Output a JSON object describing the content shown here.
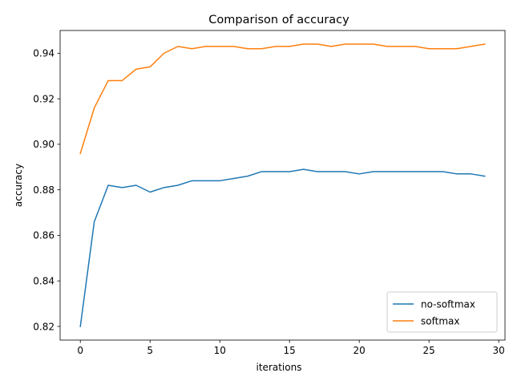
{
  "chart_data": {
    "type": "line",
    "title": "Comparison of accuracy",
    "xlabel": "iterations",
    "ylabel": "accuracy",
    "xlim": [
      -1.45,
      30.45
    ],
    "ylim": [
      0.814,
      0.95
    ],
    "xticks": [
      0,
      5,
      10,
      15,
      20,
      25,
      30
    ],
    "yticks": [
      0.82,
      0.84,
      0.86,
      0.88,
      0.9,
      0.92,
      0.94
    ],
    "grid": false,
    "legend_position": "lower-right",
    "x": [
      0,
      1,
      2,
      3,
      4,
      5,
      6,
      7,
      8,
      9,
      10,
      11,
      12,
      13,
      14,
      15,
      16,
      17,
      18,
      19,
      20,
      21,
      22,
      23,
      24,
      25,
      26,
      27,
      28,
      29
    ],
    "series": [
      {
        "name": "no-softmax",
        "color": "#1f77b4",
        "values": [
          0.82,
          0.866,
          0.882,
          0.881,
          0.882,
          0.879,
          0.881,
          0.882,
          0.884,
          0.884,
          0.884,
          0.885,
          0.886,
          0.888,
          0.888,
          0.888,
          0.889,
          0.888,
          0.888,
          0.888,
          0.887,
          0.888,
          0.888,
          0.888,
          0.888,
          0.888,
          0.888,
          0.887,
          0.887,
          0.886
        ]
      },
      {
        "name": "softmax",
        "color": "#ff7f0e",
        "values": [
          0.896,
          0.916,
          0.928,
          0.928,
          0.933,
          0.934,
          0.94,
          0.943,
          0.942,
          0.943,
          0.943,
          0.943,
          0.942,
          0.942,
          0.943,
          0.943,
          0.944,
          0.944,
          0.943,
          0.944,
          0.944,
          0.944,
          0.943,
          0.943,
          0.943,
          0.942,
          0.942,
          0.942,
          0.943,
          0.944
        ]
      }
    ]
  }
}
